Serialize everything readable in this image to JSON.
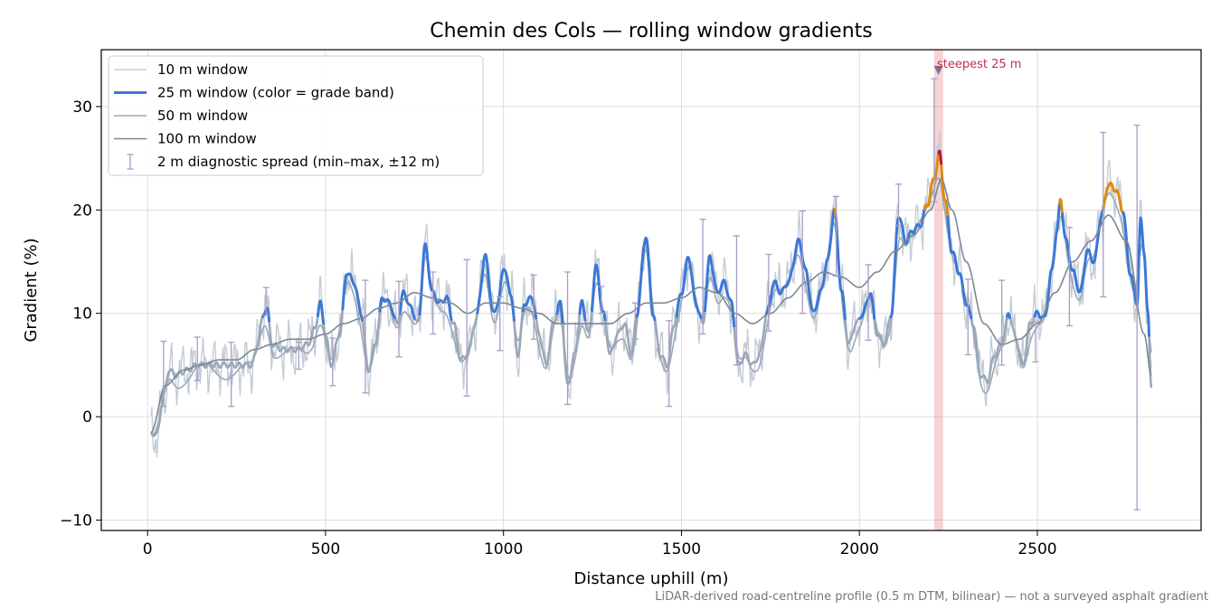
{
  "chart_data": {
    "type": "line",
    "title": "Chemin des Cols — rolling window gradients",
    "xlabel": "Distance uphill (m)",
    "ylabel": "Gradient (%)",
    "xlim": [
      -130,
      2960
    ],
    "ylim": [
      -11,
      35.5
    ],
    "xticks": [
      0,
      500,
      1000,
      1500,
      2000,
      2500
    ],
    "yticks": [
      -10,
      0,
      10,
      20,
      30
    ],
    "xtick_labels": [
      "0",
      "500",
      "1000",
      "1500",
      "2000",
      "2500"
    ],
    "ytick_labels": [
      "−10",
      "0",
      "10",
      "20",
      "30"
    ],
    "grid": true,
    "legend_position": "top-left",
    "series": [
      {
        "name": "10 m window",
        "color": "#c4ccd6"
      },
      {
        "name": "25 m window (color = grade band)",
        "color": "#3a78d6"
      },
      {
        "name": "50 m window",
        "color": "#9aa8b8"
      },
      {
        "name": "100 m window",
        "color": "#7d8796"
      },
      {
        "name": "2 m diagnostic spread (min–max, ±12 m)",
        "color": "#a99cc4"
      }
    ],
    "grade_band_colors": {
      "moderate": "#9aa8b8",
      "steep": "#3a78d6",
      "very_steep": "#e08a0c",
      "extreme": "#b8183a"
    },
    "profile_knots": [
      [
        10,
        -1.5
      ],
      [
        25,
        -1.8
      ],
      [
        45,
        2
      ],
      [
        60,
        4.5
      ],
      [
        80,
        4
      ],
      [
        110,
        4.5
      ],
      [
        140,
        5
      ],
      [
        180,
        5
      ],
      [
        220,
        5
      ],
      [
        260,
        5
      ],
      [
        290,
        5
      ],
      [
        335,
        10.5
      ],
      [
        350,
        7
      ],
      [
        380,
        6.5
      ],
      [
        420,
        6.5
      ],
      [
        450,
        7
      ],
      [
        470,
        8.5
      ],
      [
        485,
        11
      ],
      [
        500,
        8
      ],
      [
        515,
        5
      ],
      [
        540,
        8
      ],
      [
        560,
        14
      ],
      [
        580,
        13
      ],
      [
        600,
        10
      ],
      [
        620,
        4.5
      ],
      [
        640,
        7
      ],
      [
        660,
        11.5
      ],
      [
        680,
        11
      ],
      [
        700,
        9
      ],
      [
        720,
        12
      ],
      [
        740,
        10.5
      ],
      [
        760,
        9
      ],
      [
        780,
        16.5
      ],
      [
        800,
        12
      ],
      [
        820,
        11
      ],
      [
        840,
        11.5
      ],
      [
        860,
        9
      ],
      [
        880,
        5.5
      ],
      [
        900,
        6
      ],
      [
        920,
        9
      ],
      [
        950,
        15.5
      ],
      [
        970,
        10
      ],
      [
        985,
        11
      ],
      [
        1000,
        14.5
      ],
      [
        1020,
        12
      ],
      [
        1040,
        6
      ],
      [
        1060,
        11
      ],
      [
        1080,
        11.5
      ],
      [
        1100,
        8
      ],
      [
        1120,
        5
      ],
      [
        1140,
        9
      ],
      [
        1160,
        11
      ],
      [
        1180,
        3
      ],
      [
        1200,
        6
      ],
      [
        1220,
        11
      ],
      [
        1240,
        8
      ],
      [
        1260,
        14.5
      ],
      [
        1280,
        10
      ],
      [
        1300,
        6
      ],
      [
        1320,
        8
      ],
      [
        1340,
        9
      ],
      [
        1360,
        6
      ],
      [
        1375,
        10
      ],
      [
        1400,
        17.5
      ],
      [
        1420,
        10
      ],
      [
        1440,
        6
      ],
      [
        1460,
        5
      ],
      [
        1480,
        9
      ],
      [
        1500,
        12
      ],
      [
        1520,
        15.5
      ],
      [
        1540,
        11
      ],
      [
        1560,
        9
      ],
      [
        1580,
        15.5
      ],
      [
        1600,
        12
      ],
      [
        1620,
        13
      ],
      [
        1640,
        11
      ],
      [
        1660,
        5
      ],
      [
        1680,
        6
      ],
      [
        1700,
        5
      ],
      [
        1720,
        6
      ],
      [
        1740,
        10
      ],
      [
        1760,
        13
      ],
      [
        1780,
        12
      ],
      [
        1800,
        13
      ],
      [
        1830,
        17
      ],
      [
        1850,
        14
      ],
      [
        1870,
        10
      ],
      [
        1890,
        12
      ],
      [
        1910,
        15
      ],
      [
        1930,
        20
      ],
      [
        1950,
        12
      ],
      [
        1970,
        7
      ],
      [
        1990,
        9
      ],
      [
        2010,
        10
      ],
      [
        2030,
        12
      ],
      [
        2050,
        8
      ],
      [
        2070,
        7
      ],
      [
        2090,
        10
      ],
      [
        2110,
        19.5
      ],
      [
        2130,
        17
      ],
      [
        2150,
        18
      ],
      [
        2170,
        18.5
      ],
      [
        2190,
        20.5
      ],
      [
        2210,
        23
      ],
      [
        2225,
        25.5
      ],
      [
        2240,
        21
      ],
      [
        2260,
        16
      ],
      [
        2280,
        14
      ],
      [
        2300,
        11
      ],
      [
        2320,
        9
      ],
      [
        2340,
        4
      ],
      [
        2360,
        3.5
      ],
      [
        2380,
        6
      ],
      [
        2400,
        7
      ],
      [
        2420,
        10
      ],
      [
        2440,
        7.5
      ],
      [
        2460,
        5
      ],
      [
        2480,
        9
      ],
      [
        2500,
        10
      ],
      [
        2520,
        9.5
      ],
      [
        2540,
        14
      ],
      [
        2555,
        18
      ],
      [
        2565,
        21
      ],
      [
        2580,
        17
      ],
      [
        2600,
        14
      ],
      [
        2620,
        12
      ],
      [
        2640,
        16
      ],
      [
        2660,
        15
      ],
      [
        2680,
        19.5
      ],
      [
        2700,
        22.5
      ],
      [
        2720,
        22
      ],
      [
        2740,
        20
      ],
      [
        2760,
        14
      ],
      [
        2780,
        11
      ],
      [
        2790,
        19
      ],
      [
        2800,
        16
      ],
      [
        2810,
        10
      ],
      [
        2820,
        3
      ]
    ],
    "window_100m_knots": [
      [
        10,
        -1.5
      ],
      [
        50,
        3
      ],
      [
        100,
        4.5
      ],
      [
        150,
        5
      ],
      [
        200,
        5.5
      ],
      [
        250,
        5.5
      ],
      [
        300,
        6.5
      ],
      [
        350,
        7
      ],
      [
        400,
        7.5
      ],
      [
        450,
        7.5
      ],
      [
        500,
        8
      ],
      [
        550,
        9
      ],
      [
        600,
        9.5
      ],
      [
        650,
        10.5
      ],
      [
        700,
        11
      ],
      [
        750,
        12
      ],
      [
        800,
        11.5
      ],
      [
        850,
        11
      ],
      [
        900,
        10
      ],
      [
        950,
        11
      ],
      [
        1000,
        11
      ],
      [
        1050,
        10.5
      ],
      [
        1100,
        10
      ],
      [
        1150,
        9
      ],
      [
        1200,
        9
      ],
      [
        1250,
        9
      ],
      [
        1300,
        9
      ],
      [
        1350,
        10
      ],
      [
        1400,
        11
      ],
      [
        1450,
        11
      ],
      [
        1500,
        11.5
      ],
      [
        1550,
        12.5
      ],
      [
        1600,
        12
      ],
      [
        1650,
        10
      ],
      [
        1700,
        9
      ],
      [
        1750,
        10
      ],
      [
        1800,
        11.5
      ],
      [
        1850,
        13
      ],
      [
        1900,
        14
      ],
      [
        1950,
        13.5
      ],
      [
        2000,
        12.5
      ],
      [
        2050,
        14
      ],
      [
        2100,
        16
      ],
      [
        2150,
        17.5
      ],
      [
        2200,
        20
      ],
      [
        2230,
        23
      ],
      [
        2260,
        20
      ],
      [
        2300,
        15
      ],
      [
        2350,
        9
      ],
      [
        2400,
        7
      ],
      [
        2450,
        7.5
      ],
      [
        2500,
        9
      ],
      [
        2550,
        12
      ],
      [
        2600,
        15
      ],
      [
        2650,
        17
      ],
      [
        2700,
        19.5
      ],
      [
        2750,
        17
      ],
      [
        2800,
        8
      ],
      [
        2820,
        4
      ]
    ],
    "diagnostic_spread": [
      {
        "x": 45,
        "min": 1,
        "max": 7.3
      },
      {
        "x": 140,
        "min": 3.5,
        "max": 7.7
      },
      {
        "x": 235,
        "min": 1,
        "max": 7.2
      },
      {
        "x": 333,
        "min": 9.8,
        "max": 12.5
      },
      {
        "x": 425,
        "min": 4.6,
        "max": 7.2
      },
      {
        "x": 520,
        "min": 3,
        "max": 7.6
      },
      {
        "x": 612,
        "min": 2.3,
        "max": 13.2
      },
      {
        "x": 706,
        "min": 5.8,
        "max": 13.1
      },
      {
        "x": 802,
        "min": 8,
        "max": 14
      },
      {
        "x": 897,
        "min": 2,
        "max": 15.2
      },
      {
        "x": 990,
        "min": 6.4,
        "max": 11.6
      },
      {
        "x": 1085,
        "min": 7.5,
        "max": 13.7
      },
      {
        "x": 1180,
        "min": 1.2,
        "max": 14
      },
      {
        "x": 1275,
        "min": 10,
        "max": 12.6
      },
      {
        "x": 1370,
        "min": 7.5,
        "max": 11
      },
      {
        "x": 1465,
        "min": 1,
        "max": 9.3
      },
      {
        "x": 1560,
        "min": 8,
        "max": 19.1
      },
      {
        "x": 1655,
        "min": 5,
        "max": 17.5
      },
      {
        "x": 1745,
        "min": 8.3,
        "max": 15.7
      },
      {
        "x": 1840,
        "min": 10,
        "max": 19.9
      },
      {
        "x": 1935,
        "min": 13.6,
        "max": 21.3
      },
      {
        "x": 2025,
        "min": 7.4,
        "max": 14.7
      },
      {
        "x": 2110,
        "min": 18.5,
        "max": 22.5
      },
      {
        "x": 2210,
        "min": 20.8,
        "max": 32.7
      },
      {
        "x": 2305,
        "min": 6,
        "max": 13.3
      },
      {
        "x": 2400,
        "min": 5,
        "max": 13.2
      },
      {
        "x": 2495,
        "min": 5.3,
        "max": 9.2
      },
      {
        "x": 2590,
        "min": 8.8,
        "max": 18.3
      },
      {
        "x": 2685,
        "min": 11.6,
        "max": 27.5
      },
      {
        "x": 2780,
        "min": -9,
        "max": 28.2
      }
    ],
    "steepest_segment": {
      "x_start": 2210,
      "x_end": 2235,
      "marker_x": 2222,
      "marker_y": 33.5,
      "color": "#e06060"
    },
    "annotations": [
      {
        "text": "steepest 25 m",
        "x": 2222,
        "y": 33.5,
        "color": "#c0304a"
      }
    ],
    "footnote": "LiDAR-derived road-centreline profile (0.5 m DTM, bilinear) — not a surveyed asphalt gradient"
  }
}
